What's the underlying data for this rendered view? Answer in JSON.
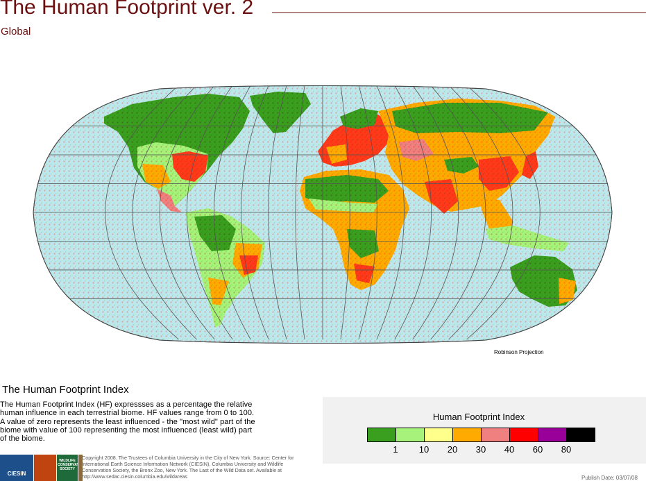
{
  "header": {
    "title": "The Human Footprint ver. 2",
    "subtitle": "Global"
  },
  "map": {
    "projection_label": "Robinson Projection",
    "ocean_color": "#bde7ef",
    "graticule_color": "#555555"
  },
  "index_section": {
    "title": "The Human Footprint Index",
    "description": "The Human Footprint Index (HF) expressses as a percentage the relative human influence in each terrestrial biome. HF values range from 0 to 100. A value of zero represents the least influenced - the \"most wild\" part of the biome with value of 100 representing the most influenced (least wild) part of the biome."
  },
  "legend": {
    "title": "Human Footprint Index",
    "classes": [
      {
        "color": "#3a9e1e"
      },
      {
        "color": "#a6f27a"
      },
      {
        "color": "#ffff8c"
      },
      {
        "color": "#ffaa00"
      },
      {
        "color": "#f08080"
      },
      {
        "color": "#ff0000"
      },
      {
        "color": "#990099"
      },
      {
        "color": "#000000"
      }
    ],
    "tick_labels": [
      "1",
      "10",
      "20",
      "30",
      "40",
      "60",
      "80"
    ]
  },
  "footer": {
    "logos": [
      {
        "name": "ciesin-logo",
        "text": "CIESIN",
        "color": "#1d4f8a"
      },
      {
        "name": "fire-logo",
        "text": "",
        "color": "#c0440f"
      },
      {
        "name": "wcs-logo",
        "text": "WILDLIFE CONSERVATION SOCIETY",
        "color": "#1f6a3a"
      },
      {
        "name": "texture-logo",
        "text": "",
        "color": "#8a6a3a"
      }
    ],
    "copyright": "Copyright 2008. The Trustees of Columbia University in the City of New York. Source: Center for International Earth Science Information Network (CIESIN), Columbia University  and Wildlife Conservation Society, the Bronx Zoo, New York. The Last of the Wild Data set. Available at http://www.sedac.ciesin.columbia.edu/wildareas",
    "publish_date": "Publish Date: 03/07/08"
  }
}
